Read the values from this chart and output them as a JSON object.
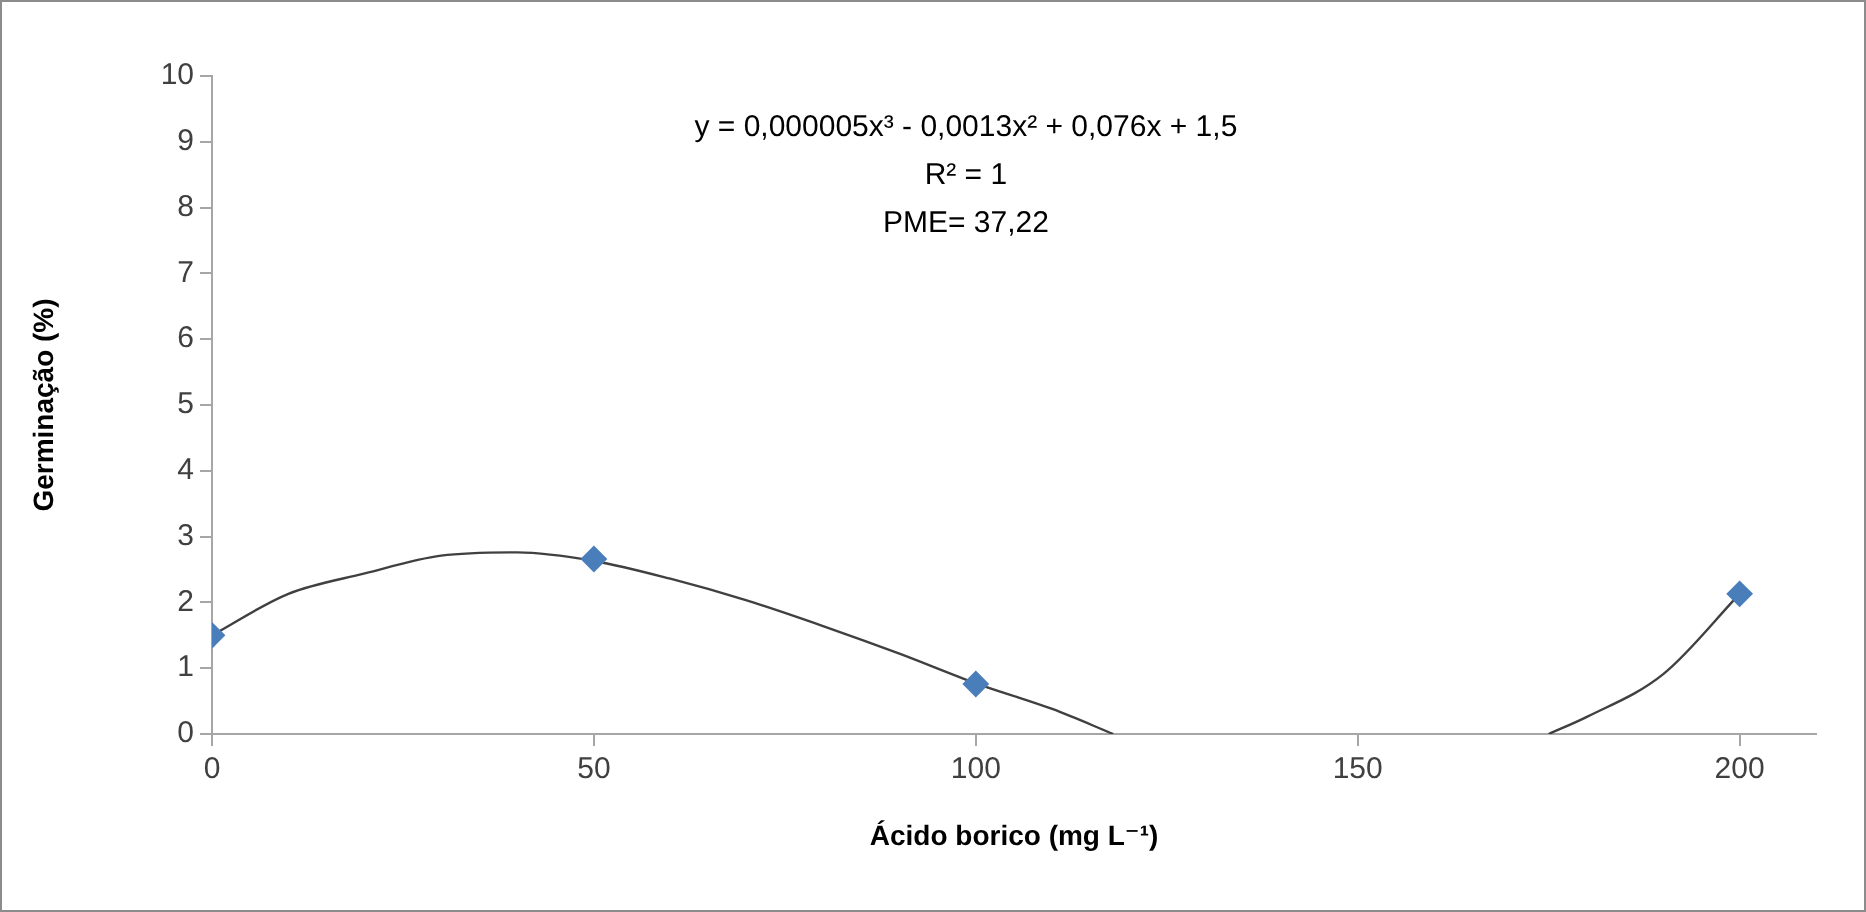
{
  "chart_data": {
    "type": "scatter",
    "xlabel": "Ácido borico (mg L⁻¹)",
    "ylabel": "Germinação (%)",
    "annotations": [
      "y = 0,000005x³ - 0,0013x² + 0,076x + 1,5",
      "R² = 1",
      "PME= 37,22"
    ],
    "xlim": [
      0,
      210
    ],
    "xticks": [
      0,
      50,
      100,
      150,
      200
    ],
    "ylim": [
      0,
      10
    ],
    "yticks": [
      0,
      1,
      2,
      3,
      4,
      5,
      6,
      7,
      8,
      9,
      10
    ],
    "grid": false,
    "legend": false,
    "line_style": "solid",
    "series": [
      {
        "color": "#4a7ebb",
        "marker": "diamond",
        "x": [
          0,
          50,
          100,
          200
        ],
        "values": [
          1.5,
          2.66,
          0.76,
          2.13
        ]
      },
      {
        "type": "line",
        "color": "#404040",
        "marker": "none",
        "x": [
          0,
          10,
          20,
          30,
          40,
          50,
          60,
          70,
          80,
          90,
          100,
          110,
          118,
          150,
          175,
          180,
          190,
          200
        ],
        "values": [
          1.5,
          2.13,
          2.44,
          2.71,
          2.76,
          2.63,
          2.36,
          2.03,
          1.64,
          1.22,
          0.77,
          0.38,
          0,
          null,
          0,
          0.26,
          0.91,
          2.13
        ]
      }
    ]
  }
}
